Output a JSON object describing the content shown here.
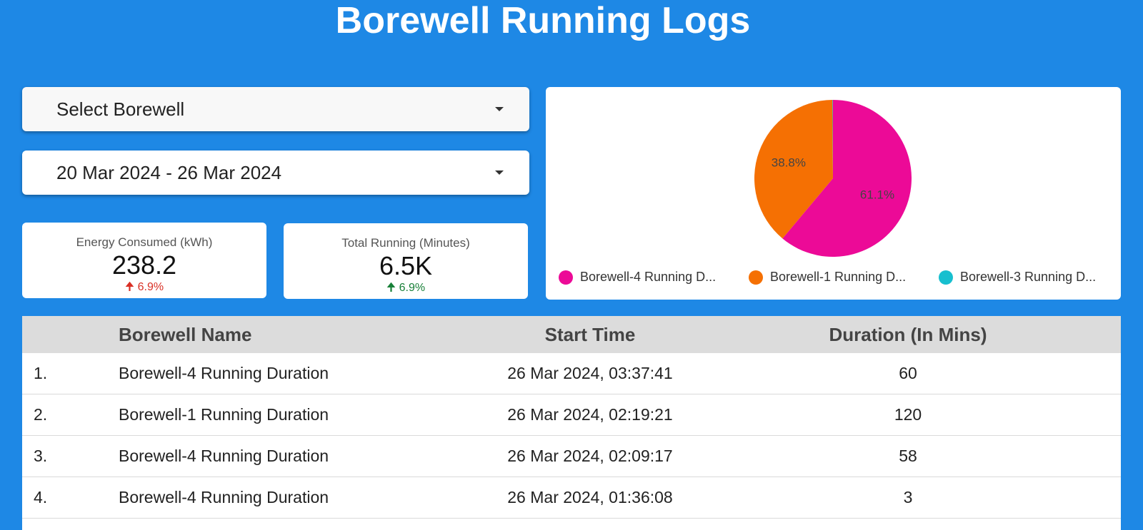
{
  "header": {
    "title": "Borewell Running Logs"
  },
  "filters": {
    "borewell_select": {
      "value": "Select Borewell"
    },
    "date_range": {
      "value": "20 Mar 2024 - 26 Mar 2024"
    }
  },
  "kpis": [
    {
      "label": "Energy Consumed (kWh)",
      "value": "238.2",
      "delta": "6.9%",
      "delta_direction": "up",
      "delta_color": "#d93025"
    },
    {
      "label": "Total Running (Minutes)",
      "value": "6.5K",
      "delta": "6.9%",
      "delta_direction": "up",
      "delta_color": "#188038"
    }
  ],
  "chart_data": {
    "type": "pie",
    "slices": [
      {
        "label": "Borewell-4 Running D...",
        "value": 61.1,
        "display": "61.1%",
        "color": "#ec0a97"
      },
      {
        "label": "Borewell-1 Running D...",
        "value": 38.8,
        "display": "38.8%",
        "color": "#f57003"
      },
      {
        "label": "Borewell-3 Running D...",
        "value": 0.1,
        "display": "",
        "color": "#17bfcf"
      }
    ],
    "legend_position": "bottom"
  },
  "table": {
    "headers": [
      "",
      "Borewell Name",
      "Start Time",
      "Duration (In Mins)"
    ],
    "rows": [
      {
        "index": "1.",
        "name": "Borewell-4 Running Duration",
        "start": "26 Mar 2024, 03:37:41",
        "duration": "60"
      },
      {
        "index": "2.",
        "name": "Borewell-1 Running Duration",
        "start": "26 Mar 2024, 02:19:21",
        "duration": "120"
      },
      {
        "index": "3.",
        "name": "Borewell-4 Running Duration",
        "start": "26 Mar 2024, 02:09:17",
        "duration": "58"
      },
      {
        "index": "4.",
        "name": "Borewell-4 Running Duration",
        "start": "26 Mar 2024, 01:36:08",
        "duration": "3"
      }
    ]
  }
}
